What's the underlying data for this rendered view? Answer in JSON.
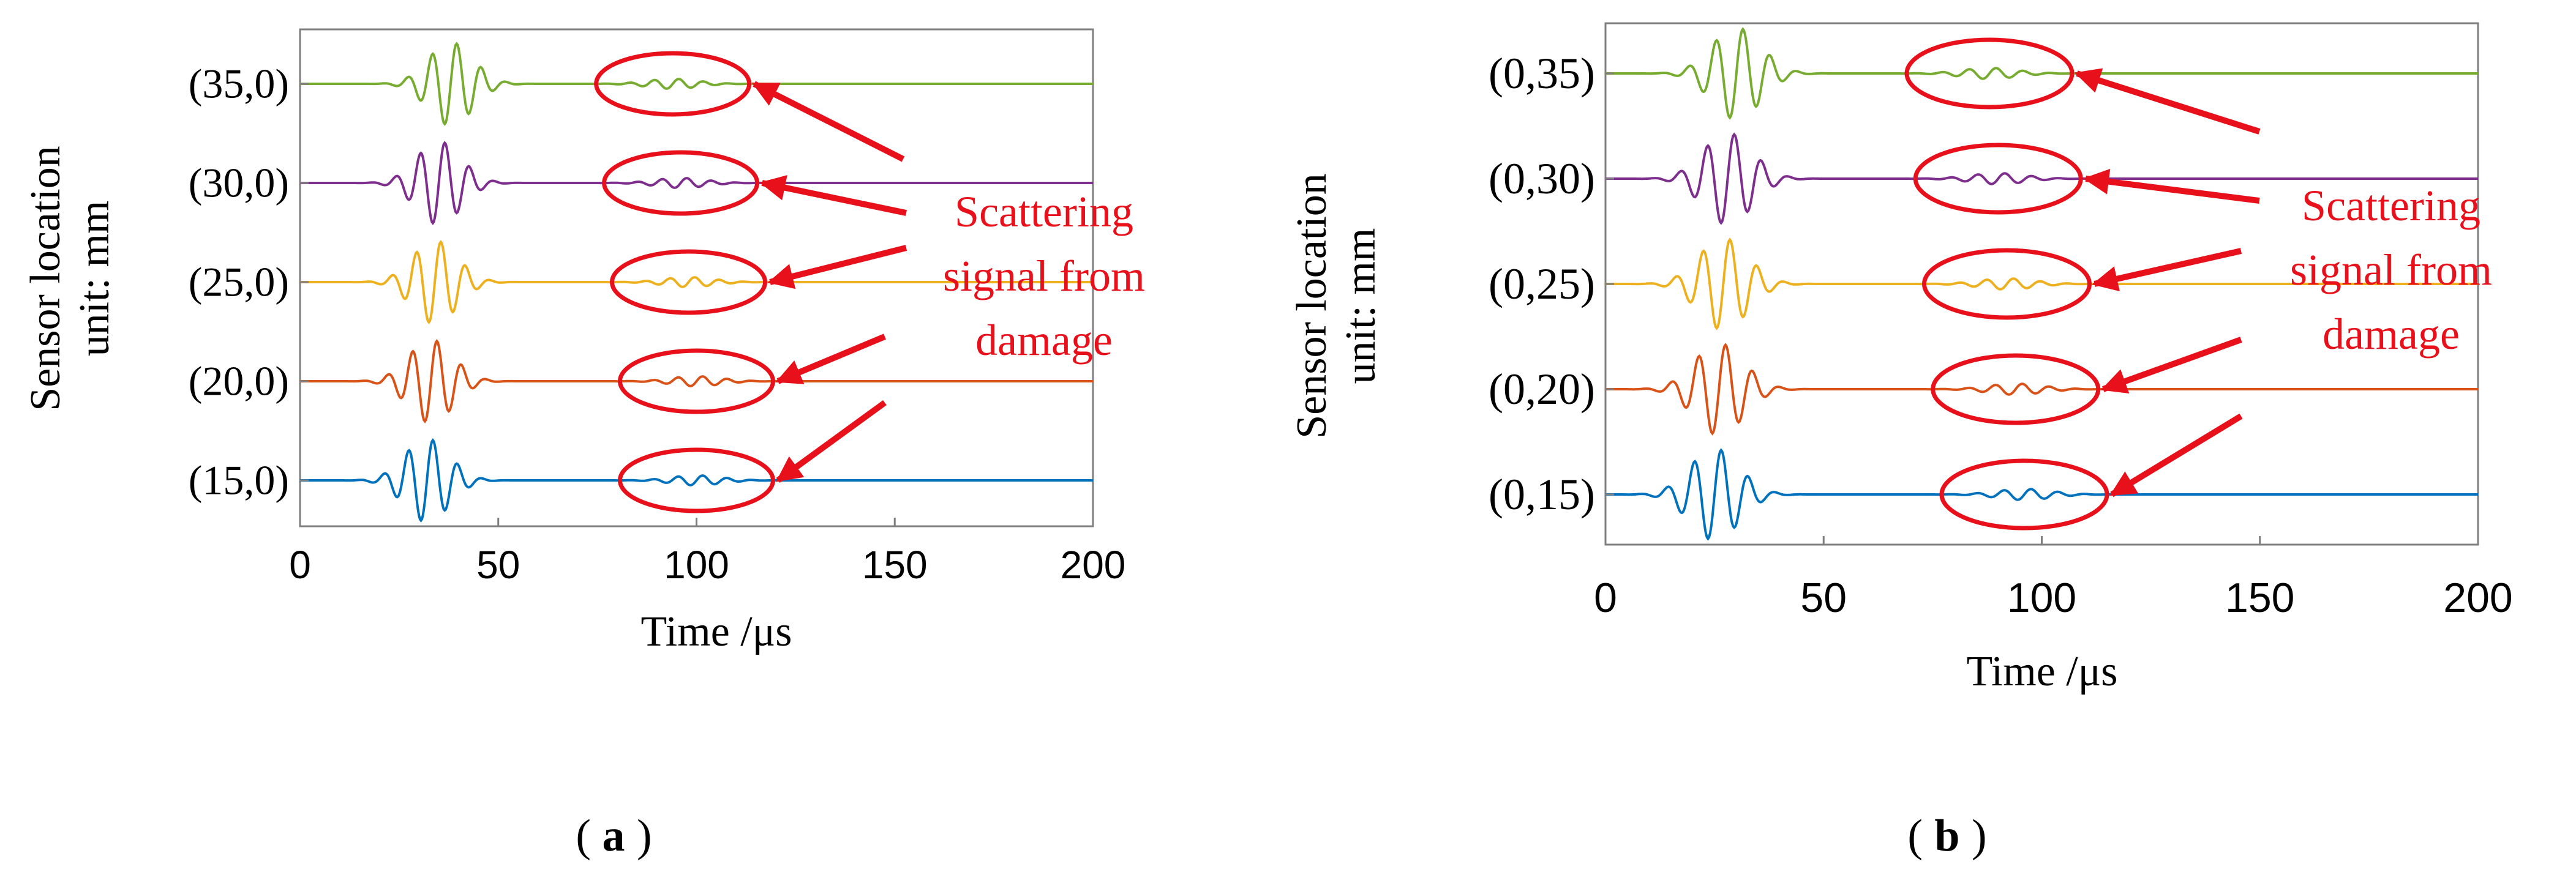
{
  "colors": {
    "axis": "#7f7f7f",
    "text": "#000000",
    "annotation": "#e8101a",
    "series": [
      "#0072bd",
      "#d95319",
      "#edb120",
      "#7e2f8e",
      "#77ac30"
    ]
  },
  "chart_data": [
    {
      "type": "line",
      "panel_label": "a",
      "xlabel": "Time /μs",
      "ylabel_line1": "Sensor location",
      "ylabel_line2": "unit: mm",
      "xlim": [
        0,
        200
      ],
      "xticks": [
        "0",
        "50",
        "100",
        "150",
        "200"
      ],
      "ylim": [
        0.5,
        5.5
      ],
      "annotation": [
        "Scattering",
        "signal from",
        "damage"
      ],
      "series": [
        {
          "name": "(15,0)",
          "offset": 1,
          "packet_center": 32,
          "scatter_center": 100
        },
        {
          "name": "(20,0)",
          "offset": 2,
          "packet_center": 33,
          "scatter_center": 100
        },
        {
          "name": "(25,0)",
          "offset": 3,
          "packet_center": 34,
          "scatter_center": 98
        },
        {
          "name": "(30,0)",
          "offset": 4,
          "packet_center": 35,
          "scatter_center": 96
        },
        {
          "name": "(35,0)",
          "offset": 5,
          "packet_center": 38,
          "scatter_center": 94
        }
      ]
    },
    {
      "type": "line",
      "panel_label": "b",
      "xlabel": "Time /μs",
      "ylabel_line1": "Sensor location",
      "ylabel_line2": "unit: mm",
      "xlim": [
        0,
        200
      ],
      "xticks": [
        "0",
        "50",
        "100",
        "150",
        "200"
      ],
      "ylim": [
        0.5,
        5.5
      ],
      "annotation": [
        "Scattering",
        "signal from",
        "damage"
      ],
      "series": [
        {
          "name": "(0,15)",
          "offset": 1,
          "packet_center": 25,
          "scatter_center": 96
        },
        {
          "name": "(0,20)",
          "offset": 2,
          "packet_center": 26,
          "scatter_center": 94
        },
        {
          "name": "(0,25)",
          "offset": 3,
          "packet_center": 27,
          "scatter_center": 92
        },
        {
          "name": "(0,30)",
          "offset": 4,
          "packet_center": 28,
          "scatter_center": 90
        },
        {
          "name": "(0,35)",
          "offset": 5,
          "packet_center": 30,
          "scatter_center": 88
        }
      ]
    }
  ]
}
